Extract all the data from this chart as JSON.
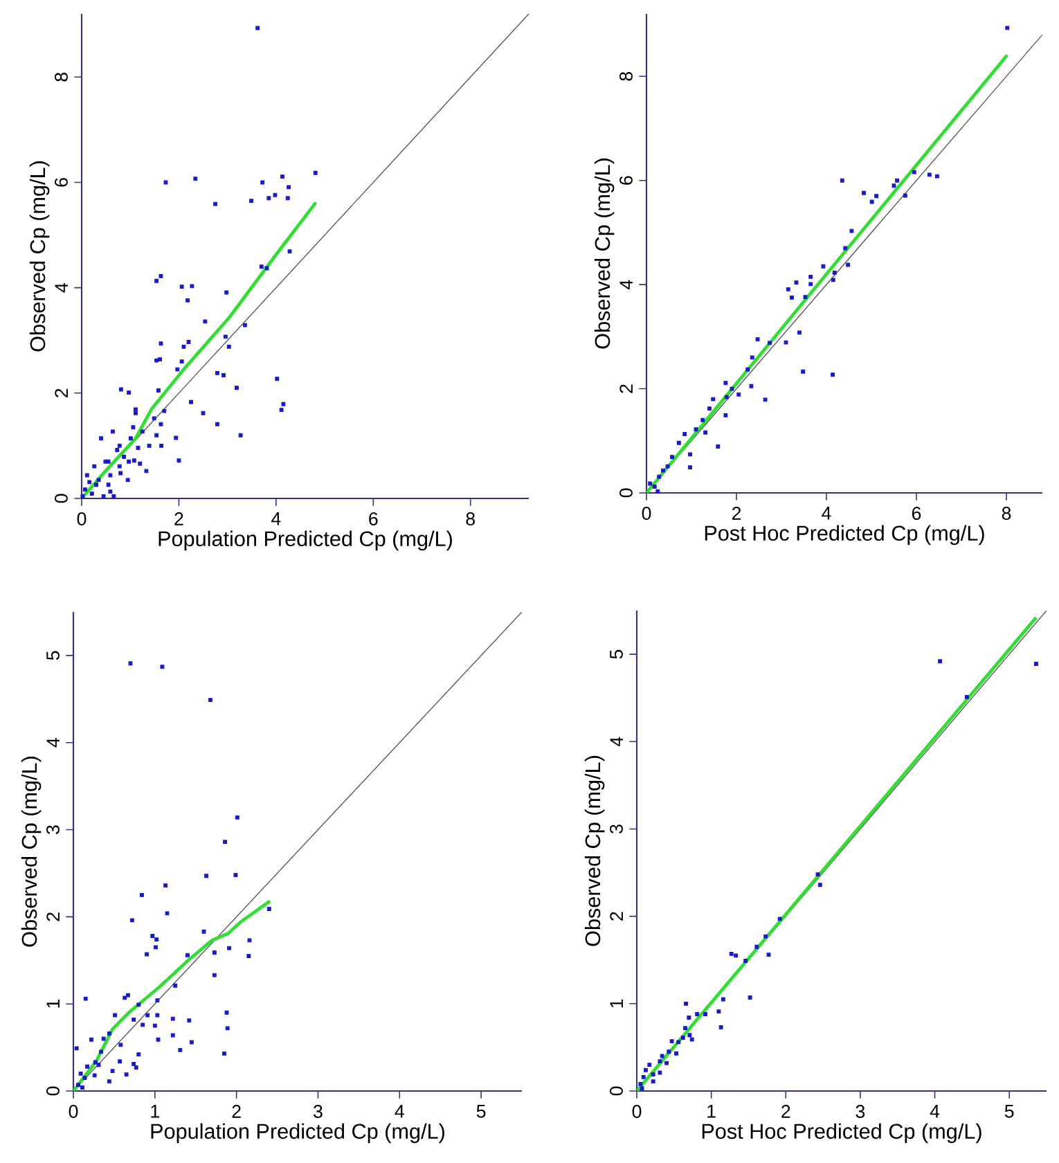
{
  "chart_data": [
    {
      "type": "scatter",
      "xlabel": "Population Predicted Cp (mg/L)",
      "ylabel": "Observed Cp (mg/L)",
      "xlim": [
        0,
        9.2
      ],
      "ylim": [
        0,
        9.2
      ],
      "xticks": [
        0,
        2,
        4,
        6,
        8
      ],
      "yticks": [
        0,
        2,
        4,
        6,
        8
      ],
      "series": [
        {
          "marker": "square",
          "color": "#1a1acc",
          "x": [
            3.62,
            4.81,
            4.13,
            3.72,
            4.26,
            1.73,
            2.34,
            2.75,
            3.49,
            3.85,
            3.98,
            4.24,
            4.28,
            3.7,
            3.81,
            1.54,
            1.63,
            2.06,
            2.27,
            2.18,
            2.98,
            2.54,
            3.36,
            2.96,
            3.03,
            1.63,
            2.2,
            2.1,
            1.54,
            1.61,
            2.06,
            1.97,
            2.79,
            2.92,
            3.19,
            4.02,
            4.11,
            4.15,
            1.58,
            2.25,
            2.5,
            2.79,
            3.27,
            1.7,
            1.49,
            1.63,
            1.54,
            1.64,
            1.94,
            2.0,
            0.81,
            0.97,
            1.11,
            1.11,
            1.06,
            1.25,
            0.64,
            0.4,
            1.01,
            0.78,
            1.16,
            1.39,
            1.08,
            1.2,
            1.33,
            0.95,
            0.78,
            0.59,
            0.55,
            0.66,
            0.45,
            0.21,
            0.3,
            0.26,
            0.11,
            0.07,
            0.49,
            0.87,
            0.73,
            0.35,
            0.02,
            0.16,
            0.59,
            0.8,
            0.97,
            0.55
          ],
          "values": [
            8.93,
            6.18,
            6.11,
            6.0,
            5.91,
            6.0,
            6.07,
            5.59,
            5.65,
            5.7,
            5.76,
            5.7,
            4.69,
            4.4,
            4.37,
            4.13,
            4.22,
            4.02,
            4.03,
            3.76,
            3.91,
            3.36,
            3.29,
            3.07,
            2.88,
            2.94,
            2.97,
            2.88,
            2.62,
            2.64,
            2.6,
            2.45,
            2.38,
            2.34,
            2.1,
            2.27,
            1.68,
            1.79,
            2.05,
            1.83,
            1.62,
            1.41,
            1.2,
            1.66,
            1.52,
            1.41,
            1.2,
            1.0,
            1.15,
            0.72,
            2.07,
            2.01,
            1.69,
            1.62,
            1.35,
            1.27,
            1.27,
            1.14,
            1.14,
            1.0,
            0.96,
            1.0,
            0.72,
            0.66,
            0.52,
            0.35,
            0.61,
            0.44,
            0.26,
            0.04,
            0.04,
            0.09,
            0.26,
            0.61,
            0.44,
            0.17,
            0.7,
            0.79,
            0.92,
            0.35,
            0.04,
            0.31,
            0.13,
            0.48,
            0.7,
            0.7
          ]
        },
        {
          "type": "line",
          "color": "#555555",
          "x": [
            0,
            9.2
          ],
          "values": [
            0,
            9.2
          ]
        },
        {
          "type": "line",
          "color": "#33dd33",
          "x": [
            0,
            0.49,
            1.11,
            1.44,
            2.1,
            3.05,
            4.0,
            4.82
          ],
          "values": [
            0,
            0.52,
            1.14,
            1.7,
            2.45,
            3.45,
            4.63,
            5.62
          ]
        }
      ]
    },
    {
      "type": "scatter",
      "xlabel": "Post Hoc Predicted Cp (mg/L)",
      "ylabel": "Observed Cp (mg/L)",
      "xlim": [
        0,
        8.8
      ],
      "ylim": [
        0,
        9.2
      ],
      "xticks": [
        0,
        2,
        4,
        6,
        8
      ],
      "yticks": [
        0,
        2,
        4,
        6,
        8
      ],
      "series": [
        {
          "marker": "square",
          "color": "#1a1acc",
          "x": [
            8.02,
            4.35,
            4.83,
            5.01,
            5.11,
            5.5,
            5.57,
            5.75,
            5.95,
            6.29,
            6.46,
            4.56,
            4.42,
            4.48,
            4.18,
            4.15,
            3.93,
            3.65,
            3.65,
            3.33,
            3.15,
            3.23,
            3.53,
            3.4,
            3.1,
            2.74,
            2.47,
            2.35,
            2.64,
            3.48,
            4.14,
            2.33,
            2.05,
            1.76,
            1.78,
            1.9,
            1.76,
            1.59,
            1.48,
            1.4,
            1.25,
            1.1,
            0.97,
            0.85,
            0.72,
            0.57,
            0.37,
            0.28,
            0.18,
            0.25,
            0.08,
            0.47,
            0.97,
            1.31,
            2.25
          ],
          "values": [
            8.93,
            6.0,
            5.76,
            5.59,
            5.7,
            5.9,
            6.0,
            5.71,
            6.16,
            6.11,
            6.08,
            5.03,
            4.7,
            4.38,
            4.23,
            4.09,
            4.35,
            4.15,
            4.01,
            4.04,
            3.91,
            3.75,
            3.76,
            3.08,
            2.89,
            2.88,
            2.95,
            2.6,
            1.79,
            2.33,
            2.27,
            2.05,
            1.89,
            2.11,
            1.84,
            2.0,
            1.49,
            0.89,
            1.8,
            1.62,
            1.4,
            1.22,
            0.49,
            1.13,
            0.96,
            0.69,
            0.43,
            0.31,
            0.12,
            0.03,
            0.18,
            0.51,
            0.74,
            1.16,
            2.37
          ]
        },
        {
          "type": "line",
          "color": "#555555",
          "x": [
            0,
            8.8
          ],
          "values": [
            0,
            8.8
          ]
        },
        {
          "type": "line",
          "color": "#33dd33",
          "x": [
            0,
            4.0,
            8.02
          ],
          "values": [
            0,
            4.2,
            8.41
          ]
        }
      ]
    },
    {
      "type": "scatter",
      "xlabel": "Population Predicted Cp (mg/L)",
      "ylabel": "Observed Cp (mg/L)",
      "xlim": [
        0,
        5.5
      ],
      "ylim": [
        0,
        5.5
      ],
      "xticks": [
        0,
        1,
        2,
        3,
        4,
        5
      ],
      "yticks": [
        0,
        1,
        2,
        3,
        4,
        5
      ],
      "series": [
        {
          "marker": "square",
          "color": "#1a1acc",
          "x": [
            0.7,
            1.09,
            1.68,
            2.01,
            1.86,
            1.63,
            1.99,
            1.13,
            0.84,
            0.72,
            1.15,
            2.4,
            1.6,
            0.97,
            1.02,
            0.9,
            1.01,
            1.4,
            1.73,
            1.91,
            2.16,
            2.15,
            1.73,
            1.25,
            1.03,
            0.15,
            0.63,
            0.67,
            0.8,
            0.51,
            0.91,
            1.03,
            1.88,
            1.22,
            1.42,
            1.89,
            0.74,
            0.44,
            1.0,
            0.85,
            1.22,
            1.04,
            1.31,
            1.45,
            1.85,
            0.8,
            0.77,
            0.58,
            0.37,
            0.22,
            0.34,
            0.57,
            0.74,
            0.65,
            0.44,
            0.27,
            0.17,
            0.04,
            0.09,
            0.14,
            0.26,
            0.06,
            0.31,
            0.48,
            0.11
          ],
          "values": [
            4.91,
            4.87,
            4.49,
            3.14,
            2.86,
            2.47,
            2.48,
            2.36,
            2.25,
            1.96,
            2.04,
            2.09,
            1.83,
            1.78,
            1.74,
            1.57,
            1.65,
            1.56,
            1.59,
            1.64,
            1.73,
            1.55,
            1.33,
            1.21,
            1.04,
            1.06,
            1.07,
            1.1,
            0.99,
            0.87,
            0.87,
            0.87,
            0.9,
            0.83,
            0.81,
            0.72,
            0.82,
            0.66,
            0.75,
            0.76,
            0.64,
            0.59,
            0.47,
            0.56,
            0.43,
            0.42,
            0.27,
            0.53,
            0.6,
            0.59,
            0.45,
            0.34,
            0.31,
            0.19,
            0.11,
            0.33,
            0.28,
            0.49,
            0.2,
            0.15,
            0.18,
            0.07,
            0.3,
            0.23,
            0.04
          ]
        },
        {
          "type": "line",
          "color": "#555555",
          "x": [
            0,
            5.5
          ],
          "values": [
            0,
            5.5
          ]
        },
        {
          "type": "line",
          "color": "#33dd33",
          "x": [
            0,
            0.28,
            0.48,
            0.68,
            1.05,
            1.42,
            1.7,
            1.9,
            2.05,
            2.41
          ],
          "values": [
            0,
            0.34,
            0.71,
            0.9,
            1.19,
            1.51,
            1.73,
            1.81,
            1.94,
            2.18
          ]
        }
      ]
    },
    {
      "type": "scatter",
      "xlabel": "Post Hoc Predicted Cp (mg/L)",
      "ylabel": "Observed Cp (mg/L)",
      "xlim": [
        0,
        5.5
      ],
      "ylim": [
        0,
        5.5
      ],
      "xticks": [
        0,
        1,
        2,
        3,
        4,
        5
      ],
      "yticks": [
        0,
        1,
        2,
        3,
        4,
        5
      ],
      "series": [
        {
          "marker": "square",
          "color": "#1a1acc",
          "x": [
            4.07,
            5.36,
            4.43,
            2.43,
            2.46,
            1.92,
            1.73,
            1.77,
            1.61,
            1.27,
            1.33,
            1.46,
            1.52,
            1.16,
            1.1,
            1.13,
            0.92,
            0.66,
            0.7,
            0.81,
            0.65,
            0.71,
            0.62,
            0.74,
            0.56,
            0.47,
            0.53,
            0.43,
            0.4,
            0.31,
            0.31,
            0.22,
            0.12,
            0.09,
            0.05,
            0.22,
            0.34,
            0.07,
            0.17
          ],
          "values": [
            4.92,
            4.89,
            4.51,
            2.48,
            2.36,
            1.97,
            1.77,
            1.56,
            1.65,
            1.57,
            1.55,
            1.49,
            1.07,
            1.05,
            0.91,
            0.73,
            0.88,
            1.0,
            0.84,
            0.88,
            0.72,
            0.64,
            0.61,
            0.59,
            0.56,
            0.57,
            0.43,
            0.45,
            0.32,
            0.34,
            0.21,
            0.19,
            0.24,
            0.16,
            0.08,
            0.11,
            0.4,
            0.03,
            0.3
          ]
        },
        {
          "type": "line",
          "color": "#555555",
          "x": [
            0,
            5.5
          ],
          "values": [
            0,
            5.5
          ]
        },
        {
          "type": "line",
          "color": "#33dd33",
          "x": [
            0,
            5.36
          ],
          "values": [
            0,
            5.42
          ]
        }
      ]
    }
  ]
}
